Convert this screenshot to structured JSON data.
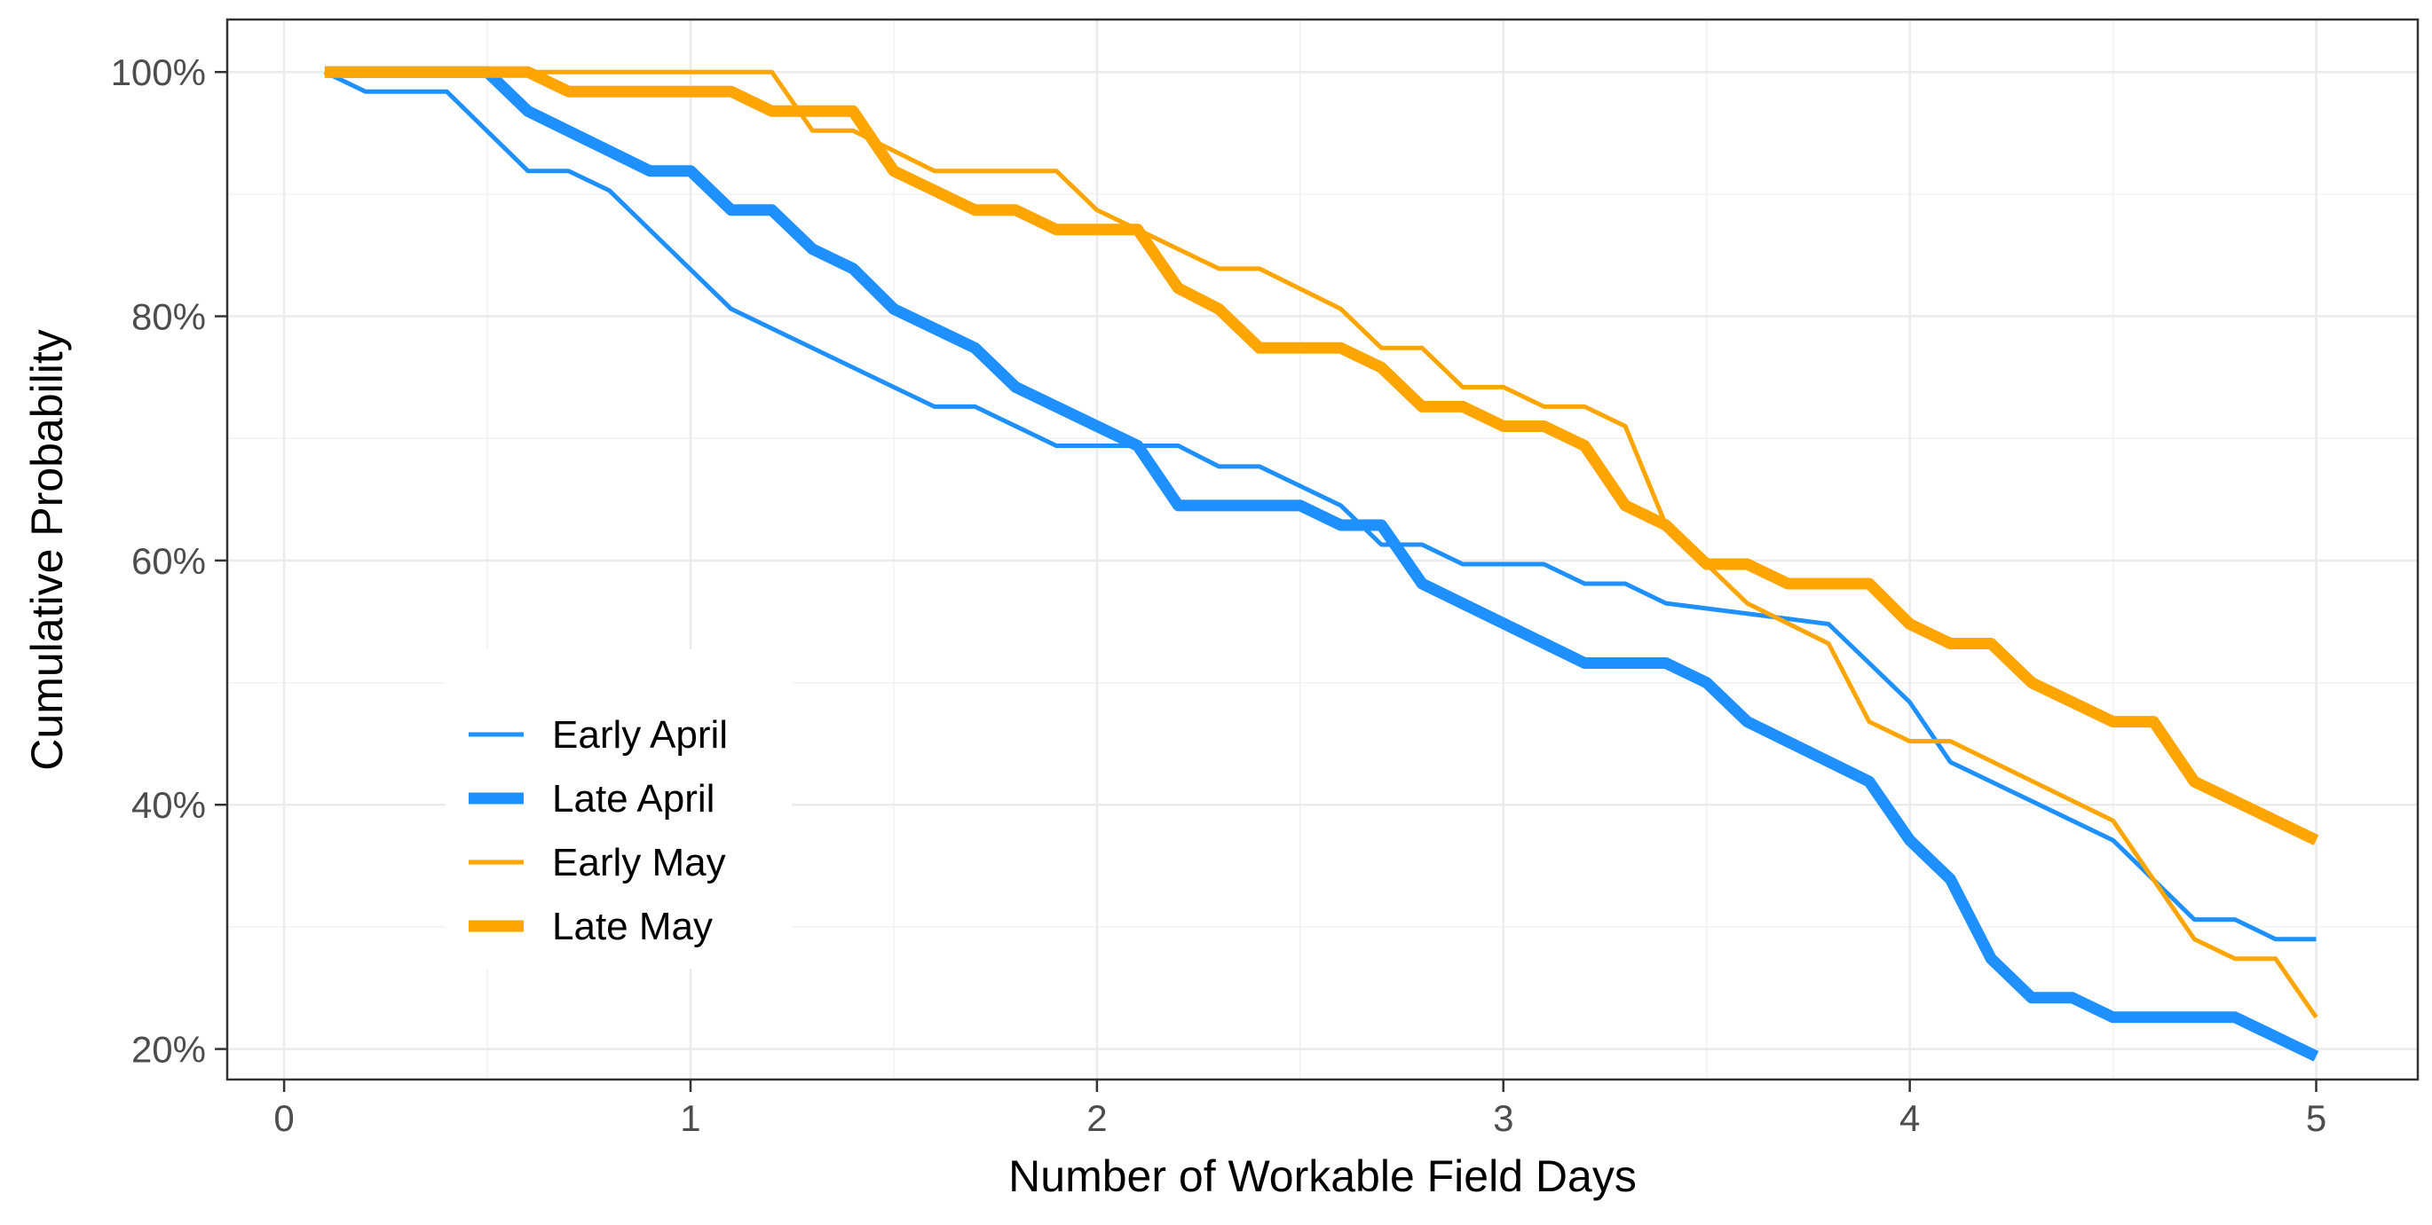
{
  "chart_data": {
    "type": "line",
    "title": "",
    "xlabel": "Number of Workable Field Days",
    "ylabel": "Cumulative Probability",
    "xlim": [
      -0.14,
      5.25
    ],
    "ylim": [
      17.5,
      104.3
    ],
    "x_ticks": [
      {
        "value": 0,
        "label": "0"
      },
      {
        "value": 1,
        "label": "1"
      },
      {
        "value": 2,
        "label": "2"
      },
      {
        "value": 3,
        "label": "3"
      },
      {
        "value": 4,
        "label": "4"
      },
      {
        "value": 5,
        "label": "5"
      }
    ],
    "y_ticks": [
      {
        "value": 20,
        "label": "20%"
      },
      {
        "value": 40,
        "label": "40%"
      },
      {
        "value": 60,
        "label": "60%"
      },
      {
        "value": 80,
        "label": "80%"
      },
      {
        "value": 100,
        "label": "100%"
      }
    ],
    "grid": true,
    "legend_position": "bottom-left, inside plot",
    "series": [
      {
        "name": "Early April",
        "color": "#1E90FF",
        "width": "thin",
        "points": [
          [
            0.1,
            100
          ],
          [
            0.2,
            98.4
          ],
          [
            0.4,
            98.4
          ],
          [
            0.6,
            91.9
          ],
          [
            0.7,
            91.9
          ],
          [
            0.8,
            90.3
          ],
          [
            1.1,
            80.6
          ],
          [
            1.6,
            72.6
          ],
          [
            1.7,
            72.6
          ],
          [
            1.9,
            69.4
          ],
          [
            2.2,
            69.4
          ],
          [
            2.3,
            67.7
          ],
          [
            2.4,
            67.7
          ],
          [
            2.6,
            64.5
          ],
          [
            2.7,
            61.3
          ],
          [
            2.8,
            61.3
          ],
          [
            2.9,
            59.7
          ],
          [
            3.1,
            59.7
          ],
          [
            3.2,
            58.1
          ],
          [
            3.3,
            58.1
          ],
          [
            3.4,
            56.5
          ],
          [
            3.8,
            54.8
          ],
          [
            3.9,
            51.6
          ],
          [
            4.0,
            48.4
          ],
          [
            4.1,
            43.5
          ],
          [
            4.5,
            37.1
          ],
          [
            4.7,
            30.6
          ],
          [
            4.8,
            30.6
          ],
          [
            4.9,
            29.0
          ],
          [
            5.0,
            29.0
          ]
        ]
      },
      {
        "name": "Late April",
        "color": "#1E90FF",
        "width": "thick",
        "points": [
          [
            0.1,
            100
          ],
          [
            0.5,
            100
          ],
          [
            0.6,
            96.8
          ],
          [
            0.9,
            91.9
          ],
          [
            1.0,
            91.9
          ],
          [
            1.1,
            88.7
          ],
          [
            1.2,
            88.7
          ],
          [
            1.3,
            85.5
          ],
          [
            1.4,
            83.9
          ],
          [
            1.5,
            80.6
          ],
          [
            1.7,
            77.4
          ],
          [
            1.8,
            74.2
          ],
          [
            2.1,
            69.4
          ],
          [
            2.2,
            64.5
          ],
          [
            2.5,
            64.5
          ],
          [
            2.6,
            62.9
          ],
          [
            2.7,
            62.9
          ],
          [
            2.8,
            58.1
          ],
          [
            3.2,
            51.6
          ],
          [
            3.4,
            51.6
          ],
          [
            3.5,
            50.0
          ],
          [
            3.6,
            46.8
          ],
          [
            3.9,
            41.9
          ],
          [
            4.0,
            37.1
          ],
          [
            4.1,
            33.9
          ],
          [
            4.2,
            27.4
          ],
          [
            4.3,
            24.2
          ],
          [
            4.4,
            24.2
          ],
          [
            4.5,
            22.6
          ],
          [
            4.8,
            22.6
          ],
          [
            5.0,
            19.4
          ]
        ]
      },
      {
        "name": "Early May",
        "color": "#FFA500",
        "width": "thin",
        "points": [
          [
            0.1,
            100
          ],
          [
            0.6,
            100
          ],
          [
            1.2,
            100
          ],
          [
            1.3,
            95.2
          ],
          [
            1.4,
            95.2
          ],
          [
            1.6,
            91.9
          ],
          [
            1.9,
            91.9
          ],
          [
            2.0,
            88.7
          ],
          [
            2.1,
            87.1
          ],
          [
            2.3,
            83.9
          ],
          [
            2.4,
            83.9
          ],
          [
            2.6,
            80.6
          ],
          [
            2.7,
            77.4
          ],
          [
            2.8,
            77.4
          ],
          [
            2.9,
            74.2
          ],
          [
            3.0,
            74.2
          ],
          [
            3.1,
            72.6
          ],
          [
            3.2,
            72.6
          ],
          [
            3.3,
            71.0
          ],
          [
            3.4,
            62.9
          ],
          [
            3.5,
            59.7
          ],
          [
            3.6,
            56.5
          ],
          [
            3.8,
            53.2
          ],
          [
            3.9,
            46.8
          ],
          [
            4.0,
            45.2
          ],
          [
            4.1,
            45.2
          ],
          [
            4.5,
            38.7
          ],
          [
            4.7,
            29.0
          ],
          [
            4.8,
            27.4
          ],
          [
            4.9,
            27.4
          ],
          [
            5.0,
            22.6
          ]
        ]
      },
      {
        "name": "Late May",
        "color": "#FFA500",
        "width": "thick",
        "points": [
          [
            0.1,
            100
          ],
          [
            0.6,
            100
          ],
          [
            0.7,
            98.4
          ],
          [
            1.1,
            98.4
          ],
          [
            1.2,
            96.8
          ],
          [
            1.3,
            96.8
          ],
          [
            1.4,
            96.8
          ],
          [
            1.5,
            91.9
          ],
          [
            1.7,
            88.7
          ],
          [
            1.8,
            88.7
          ],
          [
            1.9,
            87.1
          ],
          [
            2.1,
            87.1
          ],
          [
            2.2,
            82.3
          ],
          [
            2.3,
            80.6
          ],
          [
            2.4,
            77.4
          ],
          [
            2.6,
            77.4
          ],
          [
            2.7,
            75.8
          ],
          [
            2.8,
            72.6
          ],
          [
            2.9,
            72.6
          ],
          [
            3.0,
            71.0
          ],
          [
            3.1,
            71.0
          ],
          [
            3.2,
            69.4
          ],
          [
            3.3,
            64.5
          ],
          [
            3.4,
            62.9
          ],
          [
            3.5,
            59.7
          ],
          [
            3.6,
            59.7
          ],
          [
            3.7,
            58.1
          ],
          [
            3.9,
            58.1
          ],
          [
            4.0,
            54.8
          ],
          [
            4.1,
            53.2
          ],
          [
            4.2,
            53.2
          ],
          [
            4.3,
            50.0
          ],
          [
            4.5,
            46.8
          ],
          [
            4.6,
            46.8
          ],
          [
            4.7,
            41.9
          ],
          [
            5.0,
            37.1
          ]
        ]
      }
    ]
  }
}
